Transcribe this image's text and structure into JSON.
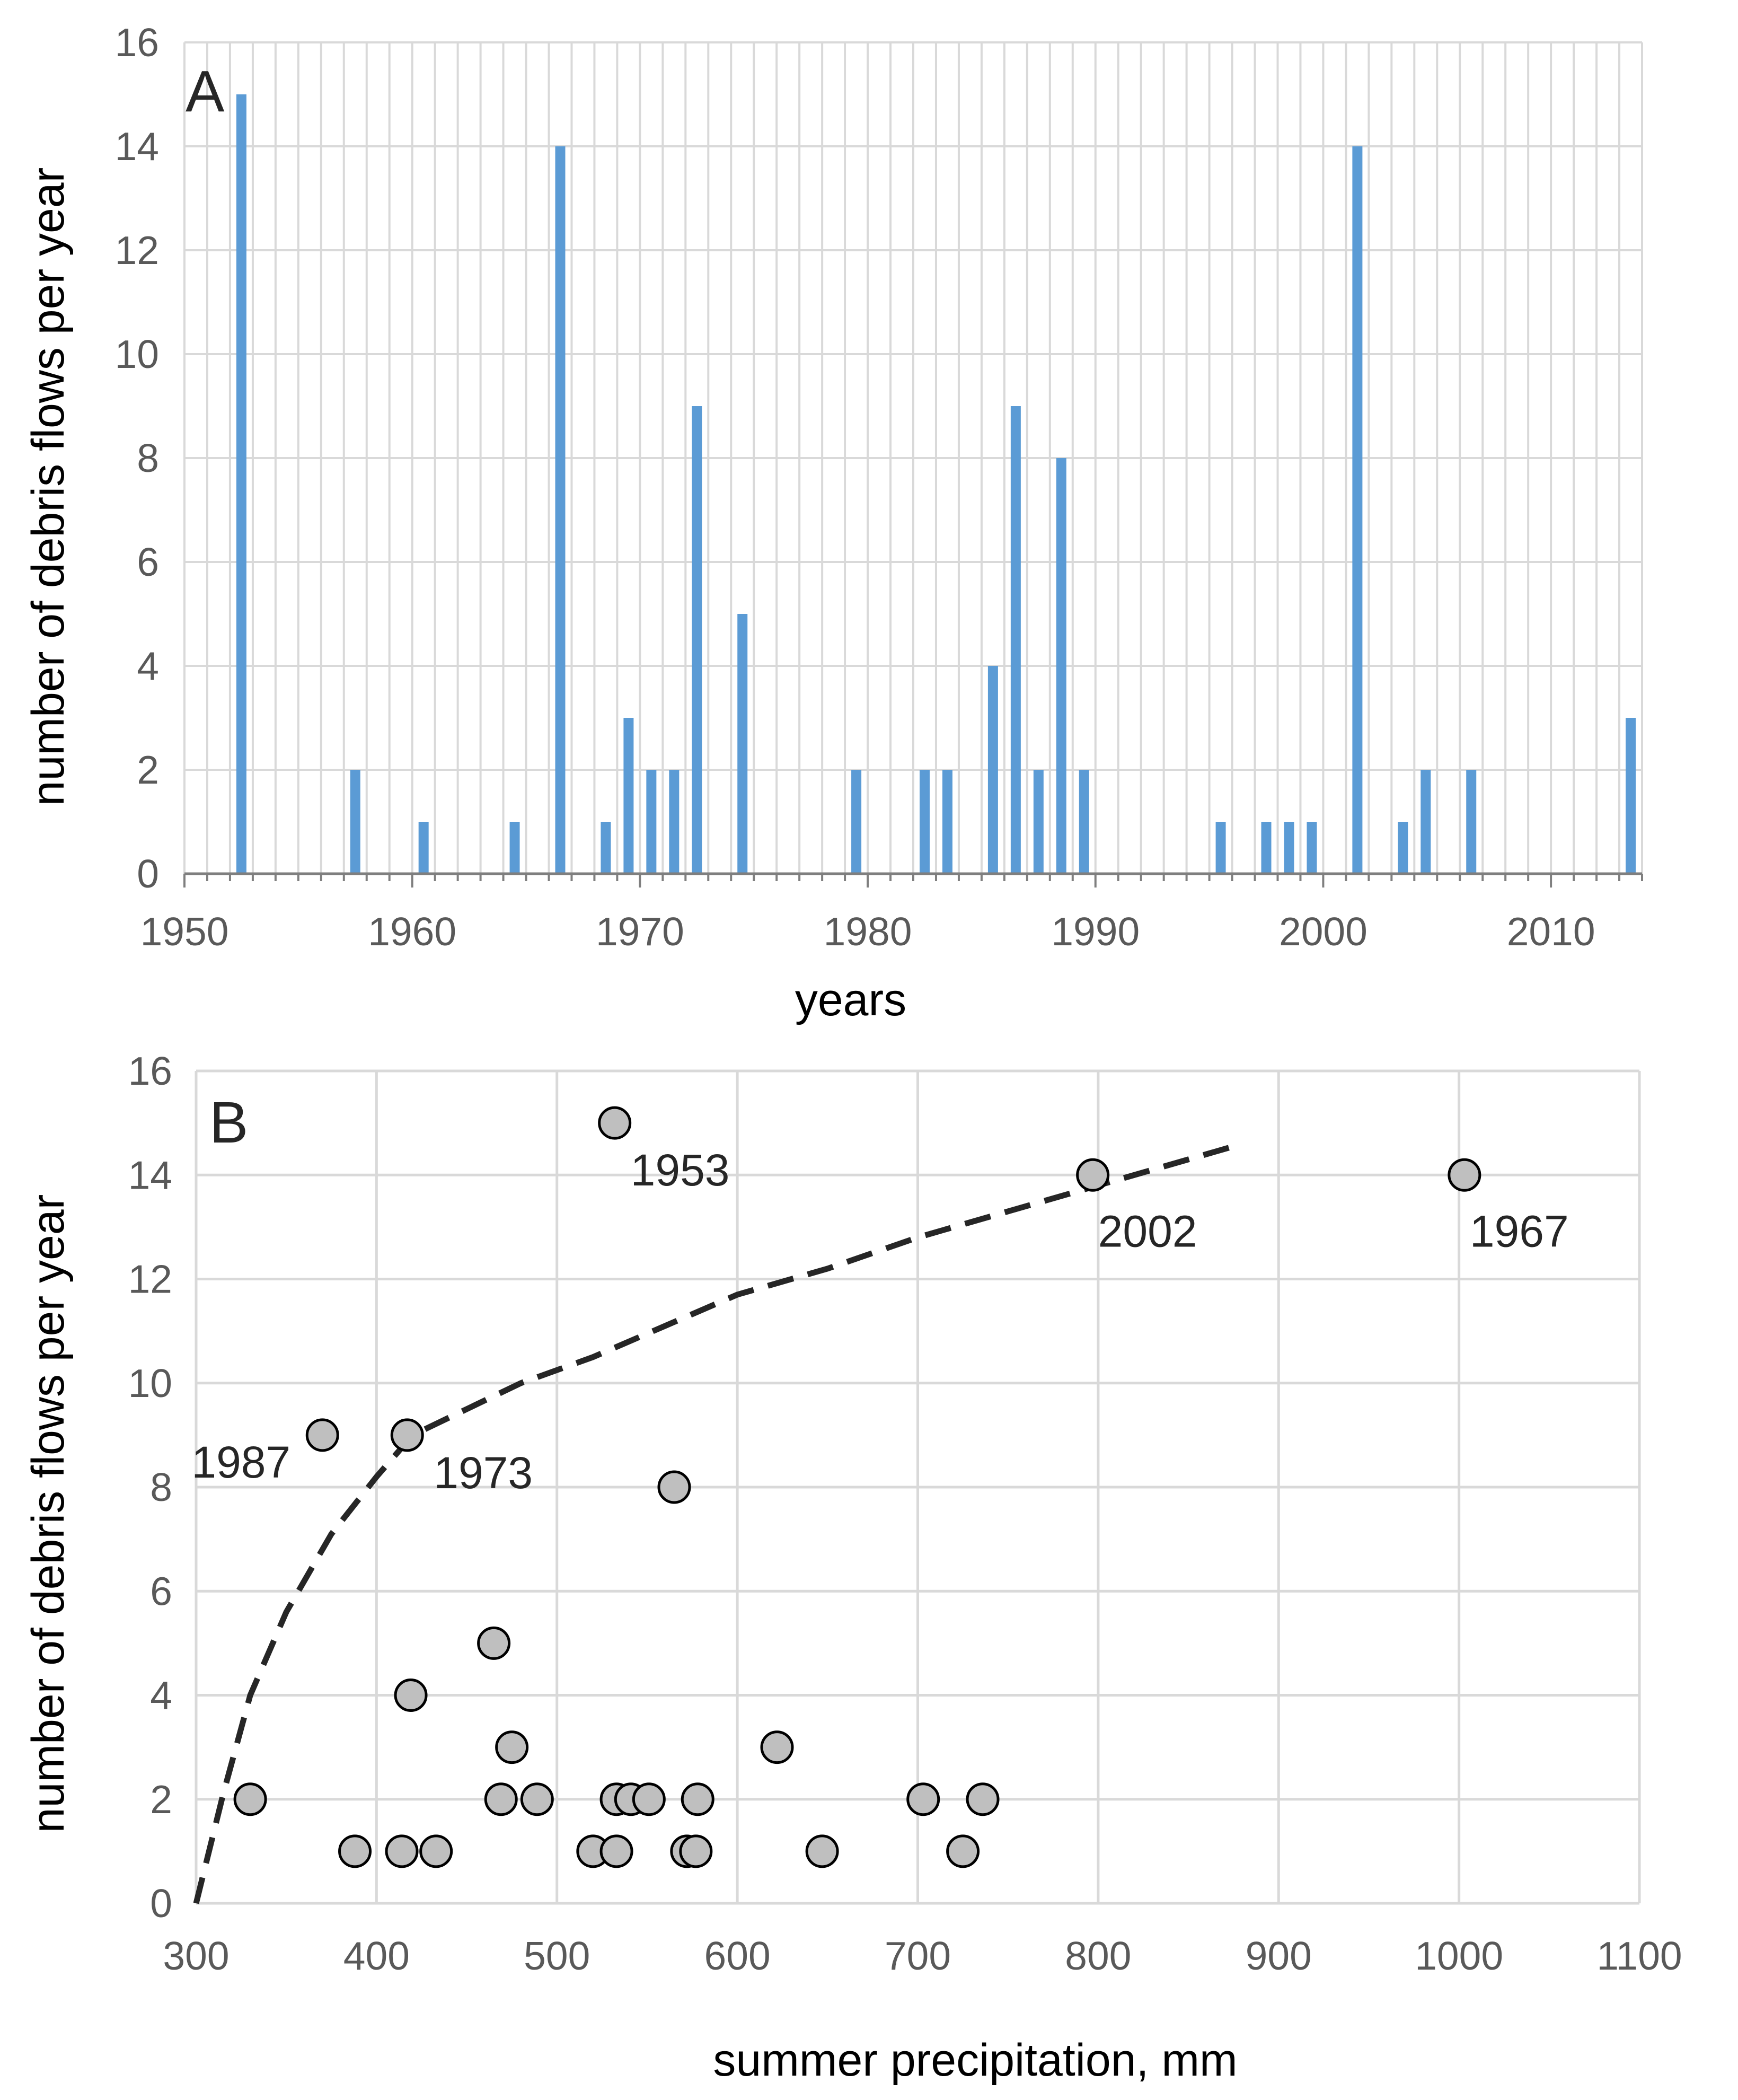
{
  "chart_data": [
    {
      "type": "bar",
      "panel_label": "A",
      "xlabel": "years",
      "ylabel": "number of debris flows per year",
      "xlim": [
        1950,
        2014
      ],
      "ylim": [
        0,
        16
      ],
      "y_ticks": [
        "0",
        "2",
        "4",
        "6",
        "8",
        "10",
        "12",
        "14",
        "16"
      ],
      "x_ticks": [
        "1950",
        "1960",
        "1970",
        "1980",
        "1990",
        "2000",
        "2010"
      ],
      "grid": true,
      "bar_color": "#5B9BD5",
      "x": [
        1952,
        1957,
        1960,
        1964,
        1966,
        1968,
        1969,
        1970,
        1971,
        1972,
        1974,
        1979,
        1982,
        1983,
        1985,
        1986,
        1987,
        1988,
        1989,
        1995,
        1997,
        1998,
        1999,
        2001,
        2003,
        2004,
        2006,
        2013
      ],
      "values": [
        15,
        2,
        1,
        1,
        14,
        1,
        3,
        2,
        2,
        9,
        5,
        2,
        2,
        2,
        4,
        9,
        2,
        8,
        2,
        1,
        1,
        1,
        1,
        14,
        1,
        2,
        2,
        3
      ]
    },
    {
      "type": "scatter",
      "panel_label": "B",
      "xlabel": "summer precipitation, mm",
      "ylabel": "number of debris flows per year",
      "xlim": [
        300,
        1100
      ],
      "ylim": [
        0,
        16
      ],
      "y_ticks": [
        "0",
        "2",
        "4",
        "6",
        "8",
        "10",
        "12",
        "14",
        "16"
      ],
      "x_ticks": [
        "300",
        "400",
        "500",
        "600",
        "700",
        "800",
        "900",
        "1000",
        "1100"
      ],
      "grid": true,
      "marker_fill": "#BFBFBF",
      "marker_edge": "#000000",
      "points": [
        {
          "x": 532,
          "y": 15
        },
        {
          "x": 797,
          "y": 14
        },
        {
          "x": 1003,
          "y": 14
        },
        {
          "x": 370,
          "y": 9
        },
        {
          "x": 417,
          "y": 9
        },
        {
          "x": 565,
          "y": 8
        },
        {
          "x": 465,
          "y": 5
        },
        {
          "x": 419,
          "y": 4
        },
        {
          "x": 475,
          "y": 3
        },
        {
          "x": 622,
          "y": 3
        },
        {
          "x": 330,
          "y": 2
        },
        {
          "x": 469,
          "y": 2
        },
        {
          "x": 489,
          "y": 2
        },
        {
          "x": 533,
          "y": 2
        },
        {
          "x": 541,
          "y": 2
        },
        {
          "x": 551,
          "y": 2
        },
        {
          "x": 578,
          "y": 2
        },
        {
          "x": 703,
          "y": 2
        },
        {
          "x": 736,
          "y": 2
        },
        {
          "x": 388,
          "y": 1
        },
        {
          "x": 414,
          "y": 1
        },
        {
          "x": 433,
          "y": 1
        },
        {
          "x": 520,
          "y": 1
        },
        {
          "x": 533,
          "y": 1
        },
        {
          "x": 572,
          "y": 1
        },
        {
          "x": 577,
          "y": 1
        },
        {
          "x": 647,
          "y": 1
        },
        {
          "x": 725,
          "y": 1
        }
      ],
      "annotations": [
        {
          "label": "1953",
          "x": 532,
          "y": 15
        },
        {
          "label": "2002",
          "x": 797,
          "y": 14
        },
        {
          "label": "1967",
          "x": 1003,
          "y": 14
        },
        {
          "label": "1987",
          "x": 370,
          "y": 9
        },
        {
          "label": "1973",
          "x": 417,
          "y": 9
        }
      ],
      "trend_line": {
        "style": "dashed",
        "color": "#262626",
        "x": [
          300,
          315,
          330,
          350,
          375,
          400,
          420,
          450,
          480,
          520,
          560,
          600,
          650,
          700,
          760,
          820,
          880
        ],
        "y": [
          0,
          2.1,
          4,
          5.6,
          7.1,
          8.2,
          9.0,
          9.5,
          10.0,
          10.5,
          11.1,
          11.7,
          12.2,
          12.8,
          13.4,
          14.0,
          14.6
        ]
      }
    }
  ]
}
